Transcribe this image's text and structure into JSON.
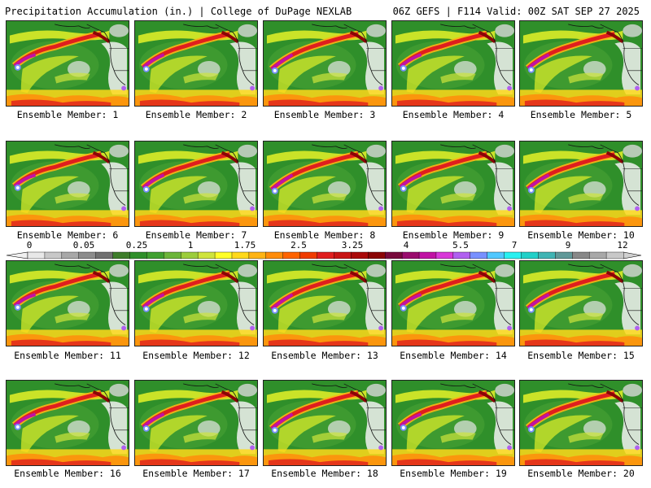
{
  "header": {
    "left_title": "Precipitation Accumulation (in.) | College of DuPage NEXLAB",
    "right_title": "06Z GEFS | F114 Valid: 00Z SAT SEP 27 2025"
  },
  "panels": [
    {
      "label": "Ensemble Member: 1"
    },
    {
      "label": "Ensemble Member: 2"
    },
    {
      "label": "Ensemble Member: 3"
    },
    {
      "label": "Ensemble Member: 4"
    },
    {
      "label": "Ensemble Member: 5"
    },
    {
      "label": "Ensemble Member: 6"
    },
    {
      "label": "Ensemble Member: 7"
    },
    {
      "label": "Ensemble Member: 8"
    },
    {
      "label": "Ensemble Member: 9"
    },
    {
      "label": "Ensemble Member: 10"
    },
    {
      "label": "Ensemble Member: 11"
    },
    {
      "label": "Ensemble Member: 12"
    },
    {
      "label": "Ensemble Member: 13"
    },
    {
      "label": "Ensemble Member: 14"
    },
    {
      "label": "Ensemble Member: 15"
    },
    {
      "label": "Ensemble Member: 16"
    },
    {
      "label": "Ensemble Member: 17"
    },
    {
      "label": "Ensemble Member: 18"
    },
    {
      "label": "Ensemble Member: 19"
    },
    {
      "label": "Ensemble Member: 20"
    }
  ],
  "colorbar": {
    "tick_labels": [
      "0",
      "0.05",
      "0.25",
      "1",
      "1.75",
      "2.5",
      "3.25",
      "4",
      "5.5",
      "7",
      "9",
      "12"
    ],
    "swatches": [
      "#e8e8e8",
      "#c8c8c8",
      "#a8a8a8",
      "#8c8c8c",
      "#707070",
      "#3e7d2b",
      "#2f8f2a",
      "#40a030",
      "#6cb53a",
      "#9ccd3c",
      "#cfe43c",
      "#ffff28",
      "#ffd91a",
      "#ffb414",
      "#ff8c0a",
      "#ff6400",
      "#f03c00",
      "#e01e1e",
      "#c81414",
      "#aa0a0a",
      "#8a0505",
      "#780a3c",
      "#9a0c6e",
      "#c012a4",
      "#d838d8",
      "#b060f0",
      "#7890ff",
      "#50c8ff",
      "#28f0f0",
      "#20d0c8",
      "#40b4b4",
      "#609898",
      "#888888",
      "#a8a8a8",
      "#c8c8c8"
    ]
  }
}
